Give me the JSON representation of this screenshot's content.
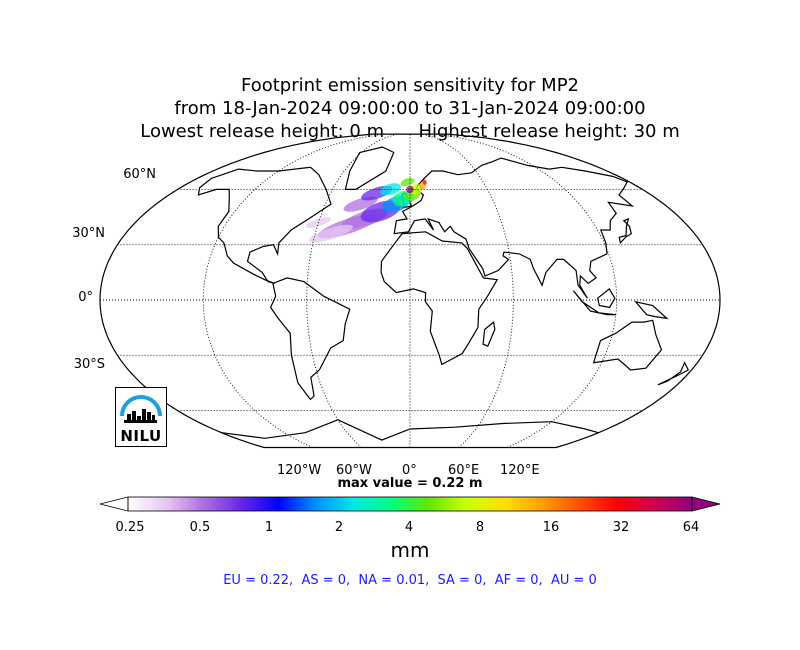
{
  "title": {
    "line1": "Footprint emission sensitivity for MP2",
    "line2": "from 18-Jan-2024 09:00:00 to 31-Jan-2024 09:00:00",
    "line3": "Lowest release height: 0 m      Highest release height: 30 m"
  },
  "lat_labels": [
    "60°N",
    "30°N",
    "0°",
    "30°S"
  ],
  "lon_labels": [
    "120°W",
    "60°W",
    "0°",
    "60°E",
    "120°E"
  ],
  "max_value": "max value = 0.22 m",
  "colorbar": {
    "ticks": [
      "0.25",
      "0.5",
      "1",
      "2",
      "4",
      "8",
      "16",
      "32",
      "64"
    ],
    "unit": "mm",
    "colors": [
      "#ffffff",
      "#e6c8f2",
      "#b070e0",
      "#6a28e8",
      "#0000ff",
      "#0090ff",
      "#00e8e8",
      "#00ff80",
      "#60e800",
      "#c8ff00",
      "#ffe000",
      "#ffa000",
      "#ff5000",
      "#ff0000",
      "#d00050",
      "#900080"
    ]
  },
  "regions_summary": "EU = 0.22,  AS = 0,  NA = 0.01,  SA = 0,  AF = 0,  AU = 0",
  "logo": {
    "text": "NILU",
    "arc_color": "#1ea0dc"
  }
}
